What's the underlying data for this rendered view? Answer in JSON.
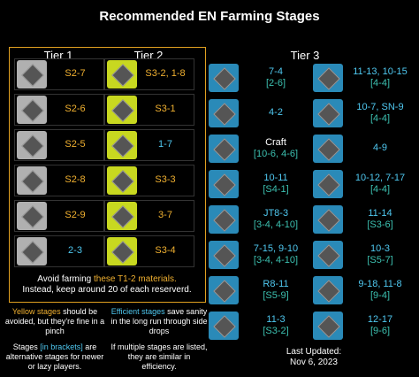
{
  "header": {
    "title": "Recommended EN Farming Stages"
  },
  "tier1": {
    "title": "Tier 1",
    "items": [
      {
        "stage": "S2-7",
        "color": "#f0b030"
      },
      {
        "stage": "S2-6",
        "color": "#f0b030"
      },
      {
        "stage": "S2-5",
        "color": "#f0b030"
      },
      {
        "stage": "S2-8",
        "color": "#f0b030"
      },
      {
        "stage": "S2-9",
        "color": "#f0b030"
      },
      {
        "stage": "2-3",
        "color": "#4fc8f0"
      }
    ]
  },
  "tier2": {
    "title": "Tier 2",
    "items": [
      {
        "stage": "S3-2, 1-8",
        "color": "#f0b030"
      },
      {
        "stage": "S3-1",
        "color": "#f0b030"
      },
      {
        "stage": "1-7",
        "color": "#4fc8f0"
      },
      {
        "stage": "S3-3",
        "color": "#f0b030"
      },
      {
        "stage": "3-7",
        "color": "#f0b030"
      },
      {
        "stage": "S3-4",
        "color": "#f0b030"
      }
    ]
  },
  "tier3": {
    "title": "Tier 3",
    "columns": [
      [
        {
          "stage": "7-4",
          "alt": "[2-6]",
          "color": "#4fc8f0"
        },
        {
          "stage": "4-2",
          "color": "#4fc8f0"
        },
        {
          "stage": "Craft",
          "alt": "[10-6, 4-6]",
          "color": "#ffffff"
        },
        {
          "stage": "10-11",
          "alt": "[S4-1]",
          "color": "#4fc8f0"
        },
        {
          "stage": "JT8-3",
          "alt": "[3-4, 4-10]",
          "color": "#4fc8f0"
        },
        {
          "stage": "7-15, 9-10",
          "alt": "[3-4, 4-10]",
          "color": "#4fc8f0"
        },
        {
          "stage": "R8-11",
          "alt": "[S5-9]",
          "color": "#4fc8f0"
        },
        {
          "stage": "11-3",
          "alt": "[S3-2]",
          "color": "#4fc8f0"
        }
      ],
      [
        {
          "stage": "11-13, 10-15",
          "alt": "[4-4]",
          "color": "#4fc8f0"
        },
        {
          "stage": "10-7, SN-9",
          "alt": "[4-4]",
          "color": "#4fc8f0"
        },
        {
          "stage": "4-9",
          "color": "#4fc8f0"
        },
        {
          "stage": "10-12, 7-17",
          "alt": "[4-4]",
          "color": "#4fc8f0"
        },
        {
          "stage": "11-14",
          "alt": "[S3-6]",
          "color": "#4fc8f0"
        },
        {
          "stage": "10-3",
          "alt": "[S5-7]",
          "color": "#4fc8f0"
        },
        {
          "stage": "9-18, 11-8",
          "alt": "[9-4]",
          "color": "#4fc8f0"
        },
        {
          "stage": "12-17",
          "alt": "[9-6]",
          "color": "#4fc8f0"
        }
      ]
    ]
  },
  "notes": {
    "avoid": {
      "lead": "Avoid farming",
      "highlight": "these T1-2 materials.",
      "rest": "Instead, keep around 20 of each reserverd."
    },
    "yellow": {
      "highlight": "Yellow stages",
      "rest": "should be avoided, but they're fine in a pinch"
    },
    "efficient": {
      "highlight": "Efficient stages",
      "rest": "save sanity in the long run through side drops"
    },
    "brackets": {
      "lead": "Stages",
      "highlight": "[in brackets]",
      "rest": "are alternative stages for newer or lazy players."
    },
    "multiple": "If multiple stages are listed, they are similar in efficiency.",
    "updated": {
      "label": "Last Updated:",
      "date": "Nov 6, 2023"
    }
  }
}
